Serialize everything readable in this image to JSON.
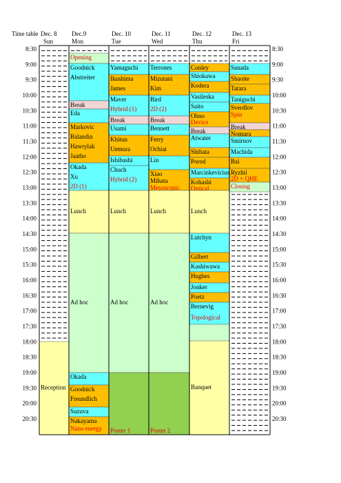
{
  "header": {
    "title": "Time table",
    "days": [
      {
        "date": "Dec. 8",
        "day": "Sun"
      },
      {
        "date": "Dec.9",
        "day": "Mon"
      },
      {
        "date": "Dec. 10",
        "day": "Tue"
      },
      {
        "date": "Dec. 11",
        "day": "Wed"
      },
      {
        "date": "Dec. 12",
        "day": "Thu"
      },
      {
        "date": "Dec. 13",
        "day": "Fri"
      }
    ]
  },
  "times": [
    "8:30",
    "9:00",
    "9:30",
    "10:00",
    "10:30",
    "11:00",
    "11:30",
    "12:00",
    "12:30",
    "13:00",
    "13:30",
    "14:00",
    "14:30",
    "15:00",
    "15:30",
    "16:00",
    "16:30",
    "17:00",
    "17:30",
    "18:00",
    "18:30",
    "19:00",
    "19:30",
    "20:00",
    "20:30"
  ],
  "columns": [
    {
      "events": [
        {
          "names": [
            "Reception"
          ]
        }
      ]
    },
    {
      "events": [
        {
          "note": "Opening"
        },
        {
          "names": [
            "Goodnick",
            "Abstreiter"
          ]
        },
        {
          "names": [
            "Break"
          ]
        },
        {
          "names": [
            "Eda"
          ]
        },
        {
          "names": [
            "Markovic",
            "Balandin",
            "Hawrylak",
            "Jaatho"
          ]
        },
        {
          "names": [
            "Okada",
            "Xu"
          ],
          "note": "2D (1)"
        },
        {
          "names": [
            "Lunch"
          ]
        },
        {
          "names": [
            "Ad hoc"
          ]
        },
        {
          "names": [
            "Okada"
          ]
        },
        {
          "names": [
            "Goodnick",
            "Freundlich"
          ]
        },
        {
          "names": [
            "Suzuva"
          ]
        },
        {
          "names": [
            "Nakayama"
          ],
          "note": "Nano energy"
        }
      ]
    },
    {
      "events": [
        {
          "names": [
            "Yamaguchi"
          ]
        },
        {
          "names": [
            "Ikushima",
            "James"
          ]
        },
        {
          "names": [
            "Maver"
          ],
          "note": "Hybrid (1)"
        },
        {
          "names": [
            "Break"
          ]
        },
        {
          "names": [
            "Usami"
          ]
        },
        {
          "names": [
            "Khitun",
            "Uemura"
          ]
        },
        {
          "names": [
            "Ishibashi"
          ]
        },
        {
          "names": [
            "Chuch"
          ],
          "note": "Hybrid (2)"
        },
        {
          "names": [
            "Lunch"
          ]
        },
        {
          "names": [
            "Ad hoc"
          ]
        },
        {
          "note": "Poster 1"
        }
      ]
    },
    {
      "events": [
        {
          "names": [
            "Terrones"
          ]
        },
        {
          "names": [
            "Mizutani",
            "Kim"
          ]
        },
        {
          "names": [
            "Bird"
          ],
          "note": "2D (2)"
        },
        {
          "names": [
            "Break"
          ]
        },
        {
          "names": [
            "Bennett"
          ]
        },
        {
          "names": [
            "Ferry",
            "Ochiai"
          ]
        },
        {
          "names": [
            "Lin"
          ]
        },
        {
          "names": [
            "Xiao",
            "Mihata"
          ],
          "note": "Mesoscopic"
        },
        {
          "names": [
            "Lunch"
          ]
        },
        {
          "names": [
            "Ad hoc"
          ]
        },
        {
          "note": "Poster 2"
        }
      ]
    },
    {
      "events": [
        {
          "names": [
            "Conley"
          ]
        },
        {
          "names": [
            "Shiokawa"
          ]
        },
        {
          "names": [
            "Kodera"
          ]
        },
        {
          "names": [
            "Vasileska"
          ]
        },
        {
          "names": [
            "Saito"
          ]
        },
        {
          "names": [
            "Ohno"
          ],
          "note": "Device"
        },
        {
          "names": [
            "Break"
          ]
        },
        {
          "names": [
            "Atwater"
          ]
        },
        {
          "names": [
            "Shibata"
          ]
        },
        {
          "names": [
            "Porod"
          ]
        },
        {
          "names": [
            "Marcinkevicius"
          ]
        },
        {
          "names": [
            "Kohashi"
          ],
          "note": "Optical"
        },
        {
          "names": [
            "Lunch"
          ]
        },
        {
          "names": [
            "Lutchyn"
          ]
        },
        {
          "names": [
            "Gilbert"
          ]
        },
        {
          "names": [
            "Kashiwawa"
          ]
        },
        {
          "names": [
            "Hughes"
          ]
        },
        {
          "names": [
            "Jonker"
          ]
        },
        {
          "names": [
            "Poetz"
          ]
        },
        {
          "names": [
            "Bernevig"
          ],
          "note": "Topological"
        },
        {
          "names": [
            "Banquet"
          ]
        }
      ]
    },
    {
      "events": [
        {
          "names": [
            "Sanada"
          ]
        },
        {
          "names": [
            "Shaoite"
          ]
        },
        {
          "names": [
            "Tatara"
          ]
        },
        {
          "names": [
            "Taniguchi"
          ]
        },
        {
          "names": [
            "Sverdlov"
          ],
          "note": "Spin"
        },
        {
          "names": [
            "Break"
          ]
        },
        {
          "names": [
            "Nomura"
          ]
        },
        {
          "names": [
            "Smirnov"
          ]
        },
        {
          "names": [
            "Machida"
          ]
        },
        {
          "names": [
            "Bai"
          ]
        },
        {
          "names": [
            "Ryzhii"
          ],
          "note": "2D + QHE"
        },
        {
          "note": "Closing"
        }
      ]
    }
  ]
}
